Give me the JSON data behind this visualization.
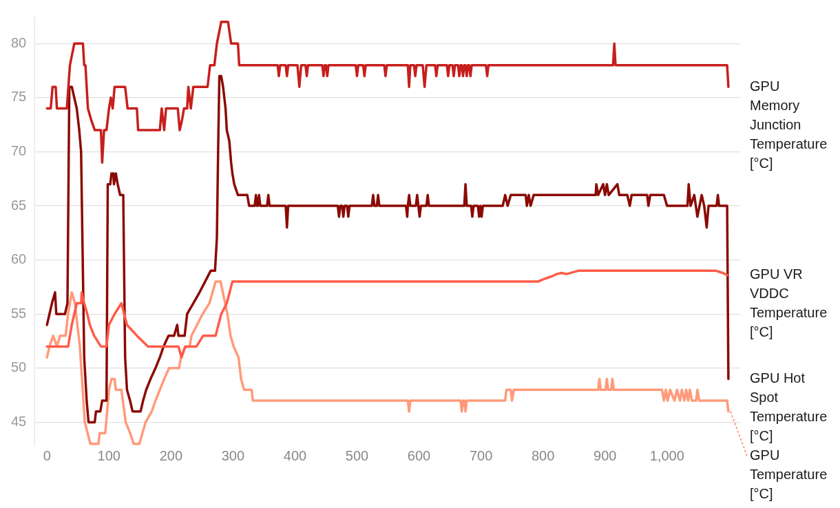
{
  "chart_data": {
    "type": "line",
    "xlim": [
      -20,
      1118
    ],
    "ylim": [
      42.8,
      82.5
    ],
    "xticks": [
      0,
      100,
      200,
      300,
      400,
      500,
      600,
      700,
      800,
      900,
      {
        "value": 1000,
        "label": "1,000"
      }
    ],
    "yticks": [
      45,
      50,
      55,
      60,
      65,
      70,
      75,
      80
    ],
    "grid": "y",
    "legend": false,
    "marker": "none",
    "line_style": "solid",
    "series": [
      {
        "name": "GPU Memory Junction Temperature [°C]",
        "color": "#c71f1d",
        "x": [
          0,
          6,
          9,
          14,
          16,
          32,
          37,
          44,
          58,
          60,
          62,
          66,
          71,
          77,
          87,
          89,
          92,
          96,
          100,
          103,
          106,
          109,
          126,
          130,
          145,
          147,
          182,
          185,
          189,
          192,
          211,
          214,
          218,
          221,
          226,
          228,
          232,
          236,
          259,
          263,
          270,
          274,
          281,
          292,
          297,
          308,
          310,
          372,
          374,
          376,
          385,
          387,
          389,
          404,
          407,
          410,
          417,
          419,
          421,
          444,
          446,
          448,
          450,
          452,
          454,
          498,
          500,
          502,
          510,
          512,
          514,
          544,
          546,
          548,
          582,
          584,
          586,
          592,
          594,
          596,
          606,
          609,
          612,
          626,
          628,
          630,
          645,
          647,
          649,
          654,
          656,
          658,
          663,
          665,
          667,
          669,
          671,
          673,
          675,
          677,
          679,
          681,
          683,
          685,
          708,
          710,
          712,
          913,
          915,
          917,
          1097,
          1099
        ],
        "values": [
          74,
          74,
          76,
          76,
          74,
          74,
          78,
          80,
          80,
          78,
          78,
          74,
          73,
          72,
          72,
          69,
          72,
          72,
          74,
          75,
          74,
          76,
          76,
          74,
          74,
          72,
          72,
          74,
          72,
          74,
          74,
          72,
          73,
          74,
          74,
          76,
          74,
          76,
          76,
          78,
          78,
          80,
          82,
          82,
          80,
          80,
          78,
          78,
          77,
          78,
          78,
          77,
          78,
          78,
          76,
          78,
          78,
          77,
          78,
          78,
          77,
          78,
          78,
          77,
          78,
          78,
          77,
          78,
          78,
          77,
          78,
          78,
          77,
          78,
          78,
          76,
          78,
          78,
          77,
          78,
          78,
          76,
          78,
          78,
          77,
          78,
          78,
          77,
          78,
          78,
          77,
          78,
          78,
          77,
          78,
          78,
          77,
          78,
          78,
          77,
          78,
          78,
          77,
          78,
          78,
          77,
          78,
          78,
          80,
          78,
          78,
          76
        ]
      },
      {
        "name": "GPU VR VDDC Temperature [°C]",
        "color": "#ff5b47",
        "x": [
          0,
          34,
          37,
          40,
          44,
          48,
          55,
          56,
          60,
          65,
          69,
          76,
          87,
          96,
          100,
          109,
          120,
          129,
          145,
          163,
          212,
          217,
          223,
          241,
          252,
          272,
          281,
          290,
          299,
          792,
          800,
          815,
          822,
          830,
          838,
          857,
          1079,
          1090,
          1097
        ],
        "values": [
          52,
          52,
          53,
          54,
          55,
          56,
          56,
          57,
          56,
          55,
          54,
          53,
          52,
          52,
          54,
          55,
          56,
          54,
          53,
          52,
          52,
          51,
          52,
          52,
          53,
          53,
          55,
          56,
          58,
          58,
          58.2,
          58.5,
          58.7,
          58.8,
          58.7,
          59,
          59,
          58.8,
          58.6
        ]
      },
      {
        "name": "GPU Hot Spot Temperature [°C]",
        "color": "#8b0a03",
        "x": [
          0,
          4,
          8,
          13,
          15,
          29,
          33,
          36,
          40,
          44,
          48,
          52,
          55,
          60,
          64,
          67,
          77,
          79,
          86,
          89,
          96,
          98,
          102,
          104,
          107,
          108,
          111,
          114,
          118,
          123,
          126,
          129,
          134,
          138,
          151,
          155,
          160,
          167,
          175,
          182,
          188,
          196,
          205,
          210,
          212,
          222,
          226,
          236,
          246,
          255,
          264,
          271,
          274,
          276,
          278,
          281,
          284,
          288,
          290,
          294,
          297,
          299,
          302,
          308,
          323,
          326,
          335,
          337,
          339,
          340,
          342,
          344,
          355,
          357,
          359,
          385,
          387,
          389,
          469,
          471,
          473,
          476,
          478,
          480,
          484,
          486,
          488,
          524,
          526,
          528,
          532,
          534,
          536,
          579,
          581,
          582,
          584,
          586,
          595,
          597,
          599,
          601,
          603,
          612,
          614,
          616,
          673,
          675,
          677,
          684,
          686,
          688,
          695,
          697,
          699,
          701,
          703,
          735,
          739,
          743,
          748,
          772,
          774,
          777,
          780,
          785,
          885,
          886,
          889,
          897,
          900,
          903,
          906,
          920,
          923,
          936,
          940,
          943,
          968,
          970,
          973,
          995,
          1000,
          1033,
          1035,
          1038,
          1044,
          1049,
          1056,
          1060,
          1064,
          1067,
          1080,
          1082,
          1084,
          1097,
          1099
        ],
        "values": [
          54,
          55,
          56,
          57,
          55,
          55,
          56,
          76,
          76,
          75,
          74,
          72,
          70,
          51,
          47,
          45,
          45,
          46,
          46,
          47,
          47,
          67,
          67,
          68,
          68,
          67,
          68,
          67,
          66,
          66,
          51,
          48,
          47,
          46,
          46,
          47,
          48,
          49,
          50,
          51,
          52,
          53,
          53,
          54,
          53,
          53,
          55,
          56,
          57,
          58,
          59,
          59,
          62,
          70,
          77,
          77,
          76,
          74,
          72,
          71,
          69,
          68,
          67,
          66,
          66,
          65,
          65,
          66,
          65,
          65,
          66,
          65,
          65,
          66,
          65,
          65,
          63,
          65,
          65,
          64,
          65,
          65,
          64,
          65,
          65,
          64,
          65,
          65,
          66,
          65,
          65,
          66,
          65,
          65,
          64,
          65,
          66,
          65,
          65,
          66,
          65,
          64,
          65,
          65,
          66,
          65,
          65,
          67,
          65,
          65,
          64,
          65,
          65,
          64,
          65,
          64,
          65,
          65,
          66,
          65,
          66,
          66,
          65,
          66,
          65,
          66,
          66,
          67,
          66,
          67,
          66,
          67,
          66,
          67,
          66,
          66,
          65,
          66,
          66,
          65,
          66,
          66,
          65,
          65,
          67,
          65,
          66,
          64,
          66,
          65,
          63,
          65,
          65,
          66,
          65,
          65,
          49
        ]
      },
      {
        "name": "GPU Temperature [°C]",
        "color": "#ff9a7a",
        "x": [
          0,
          4,
          10,
          16,
          21,
          30,
          34,
          40,
          45,
          53,
          61,
          70,
          83,
          85,
          94,
          100,
          104,
          109,
          111,
          120,
          127,
          134,
          140,
          149,
          154,
          159,
          169,
          175,
          182,
          189,
          197,
          213,
          216,
          223,
          230,
          233,
          242,
          251,
          262,
          272,
          280,
          291,
          296,
          301,
          309,
          313,
          318,
          330,
          332,
          582,
          584,
          586,
          667,
          669,
          671,
          673,
          675,
          677,
          739,
          741,
          748,
          750,
          753,
          889,
          891,
          893,
          901,
          903,
          905,
          910,
          912,
          914,
          992,
          995,
          998,
          1001,
          1005,
          1012,
          1016,
          1021,
          1024,
          1028,
          1031,
          1034,
          1037,
          1040,
          1047,
          1049,
          1052,
          1097,
          1099
        ],
        "values": [
          51,
          52,
          53,
          52,
          53,
          53,
          55,
          57,
          56,
          52,
          45,
          43,
          43,
          44,
          44,
          48,
          49,
          49,
          48,
          48,
          45,
          44,
          43,
          43,
          44,
          45,
          46,
          47,
          48,
          49,
          50,
          50,
          51,
          52,
          52,
          53,
          54,
          55,
          56,
          58,
          58,
          55,
          53,
          52,
          51,
          49,
          48,
          48,
          47,
          47,
          46,
          47,
          47,
          46,
          47,
          47,
          46,
          47,
          47,
          48,
          48,
          47,
          48,
          48,
          49,
          48,
          48,
          49,
          48,
          48,
          49,
          48,
          48,
          47,
          48,
          47,
          48,
          47,
          48,
          47,
          48,
          47,
          48,
          47,
          48,
          47,
          47,
          48,
          47,
          47,
          46
        ]
      }
    ]
  }
}
